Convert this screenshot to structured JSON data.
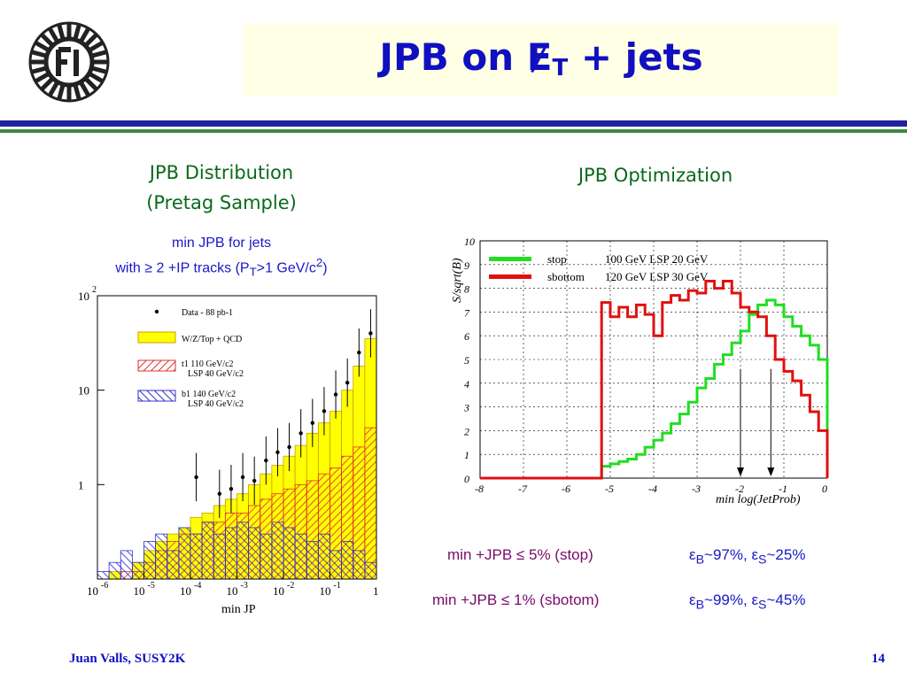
{
  "title": {
    "prefix": "JPB on ",
    "et": "E",
    "et_sub": "T",
    "suffix": " + jets"
  },
  "left": {
    "heading_line1": "JPB Distribution",
    "heading_line2": "(Pretag Sample)",
    "sub_line1": "min JPB for jets",
    "sub_line2_a": "with ≥ 2 +IP tracks (P",
    "sub_line2_sub": "T",
    "sub_line2_b": ">1 GeV/c",
    "sub_line2_sup": "2",
    "sub_line2_c": ")"
  },
  "right": {
    "heading": "JPB Optimization"
  },
  "results": [
    {
      "cut": "min +JPB ≤ 5% (stop)",
      "eff_b": "~97%, ",
      "eff_s": "~25%"
    },
    {
      "cut": "min +JPB ≤ 1% (sbotom)",
      "eff_b": "~99%, ",
      "eff_s": "~45%"
    }
  ],
  "footer": {
    "author": "Juan Valls, SUSY2K",
    "page": "14"
  },
  "colors": {
    "title": "#1010c0",
    "heading": "#0a6a1a",
    "stop": "#22dd22",
    "sbottom": "#e01010",
    "data_fill": "#ffff00"
  },
  "chart_data": [
    {
      "type": "bar",
      "xlabel": "min JP",
      "xlim_log10": [
        -6,
        0
      ],
      "ylim_log10": [
        -1,
        2
      ],
      "x_ticks": [
        "10-6",
        "10-5",
        "10-4",
        "10-3",
        "10-2",
        "10-1",
        "1"
      ],
      "y_ticks": [
        "1",
        "10",
        "10 2"
      ],
      "legend": [
        "Data - 88 pb-1",
        "W/Z/Top + QCD",
        "t1 110 GeV/c2 LSP 40 GeV/c2",
        "b1 140 GeV/c2 LSP 40 GeV/c2"
      ],
      "bins_log10": [
        -6,
        -5.75,
        -5.5,
        -5.25,
        -5,
        -4.75,
        -4.5,
        -4.25,
        -4,
        -3.75,
        -3.5,
        -3.25,
        -3,
        -2.75,
        -2.5,
        -2.25,
        -2,
        -1.75,
        -1.5,
        -1.25,
        -1,
        -0.75,
        -0.5,
        -0.25
      ],
      "series": [
        {
          "name": "W/Z/Top + QCD",
          "values": [
            0.1,
            0.12,
            0.1,
            0.15,
            0.2,
            0.25,
            0.3,
            0.35,
            0.45,
            0.5,
            0.6,
            0.7,
            0.8,
            1.0,
            1.3,
            1.6,
            2.0,
            2.6,
            3.5,
            4.5,
            6,
            10,
            18,
            35
          ]
        },
        {
          "name": "t1 110 GeV/c2 LSP 40 GeV/c2",
          "values": [
            0.1,
            0.1,
            0.12,
            0.12,
            0.15,
            0.2,
            0.25,
            0.3,
            0.3,
            0.4,
            0.4,
            0.5,
            0.5,
            0.6,
            0.7,
            0.8,
            0.9,
            1.0,
            1.1,
            1.3,
            1.5,
            2,
            2.5,
            4
          ]
        },
        {
          "name": "b1 140 GeV/c2 LSP 40 GeV/c2",
          "values": [
            0.12,
            0.15,
            0.2,
            0.15,
            0.25,
            0.3,
            0.2,
            0.35,
            0.3,
            0.4,
            0.3,
            0.35,
            0.4,
            0.35,
            0.3,
            0.4,
            0.35,
            0.3,
            0.25,
            0.3,
            0.2,
            0.25,
            0.2,
            0.15
          ]
        },
        {
          "name": "Data - 88 pb-1",
          "values": [
            null,
            null,
            null,
            null,
            null,
            null,
            null,
            null,
            1.2,
            null,
            0.8,
            0.9,
            1.2,
            1.1,
            1.8,
            2.2,
            2.5,
            3.5,
            4.5,
            6,
            9,
            12,
            25,
            40
          ]
        }
      ]
    },
    {
      "type": "line",
      "ylabel": "S/sqrt(B)",
      "xlabel": "min log(JetProb)",
      "xlim": [
        -8,
        0
      ],
      "ylim": [
        0,
        10
      ],
      "x_ticks": [
        "-8",
        "-7",
        "-6",
        "-5",
        "-4",
        "-3",
        "-2",
        "-1",
        "0"
      ],
      "y_ticks": [
        "0",
        "1",
        "2",
        "3",
        "4",
        "5",
        "6",
        "7",
        "8",
        "9",
        "10"
      ],
      "legend": [
        "stop",
        "100 GeV LSP 20 GeV",
        "sbottom",
        "120 GeV LSP 30 GeV"
      ],
      "arrows_x": [
        -2,
        -1.3
      ],
      "x": [
        -5.2,
        -5.0,
        -4.8,
        -4.6,
        -4.4,
        -4.2,
        -4.0,
        -3.8,
        -3.6,
        -3.4,
        -3.2,
        -3.0,
        -2.8,
        -2.6,
        -2.4,
        -2.2,
        -2.0,
        -1.8,
        -1.6,
        -1.4,
        -1.2,
        -1.0,
        -0.8,
        -0.6,
        -0.4,
        -0.2
      ],
      "series": [
        {
          "name": "stop",
          "values": [
            0.5,
            0.6,
            0.7,
            0.8,
            1.0,
            1.3,
            1.6,
            1.9,
            2.3,
            2.7,
            3.2,
            3.8,
            4.2,
            4.8,
            5.2,
            5.7,
            6.2,
            6.9,
            7.3,
            7.5,
            7.3,
            6.8,
            6.4,
            6.0,
            5.6,
            5.0
          ]
        },
        {
          "name": "sbottom",
          "values": [
            7.4,
            6.8,
            7.2,
            6.8,
            7.3,
            6.9,
            6.0,
            7.4,
            7.7,
            7.5,
            7.9,
            7.8,
            8.3,
            8.0,
            8.3,
            7.8,
            7.2,
            7.0,
            6.8,
            6.0,
            5.0,
            4.5,
            4.1,
            3.5,
            2.8,
            2.0
          ]
        }
      ]
    }
  ]
}
